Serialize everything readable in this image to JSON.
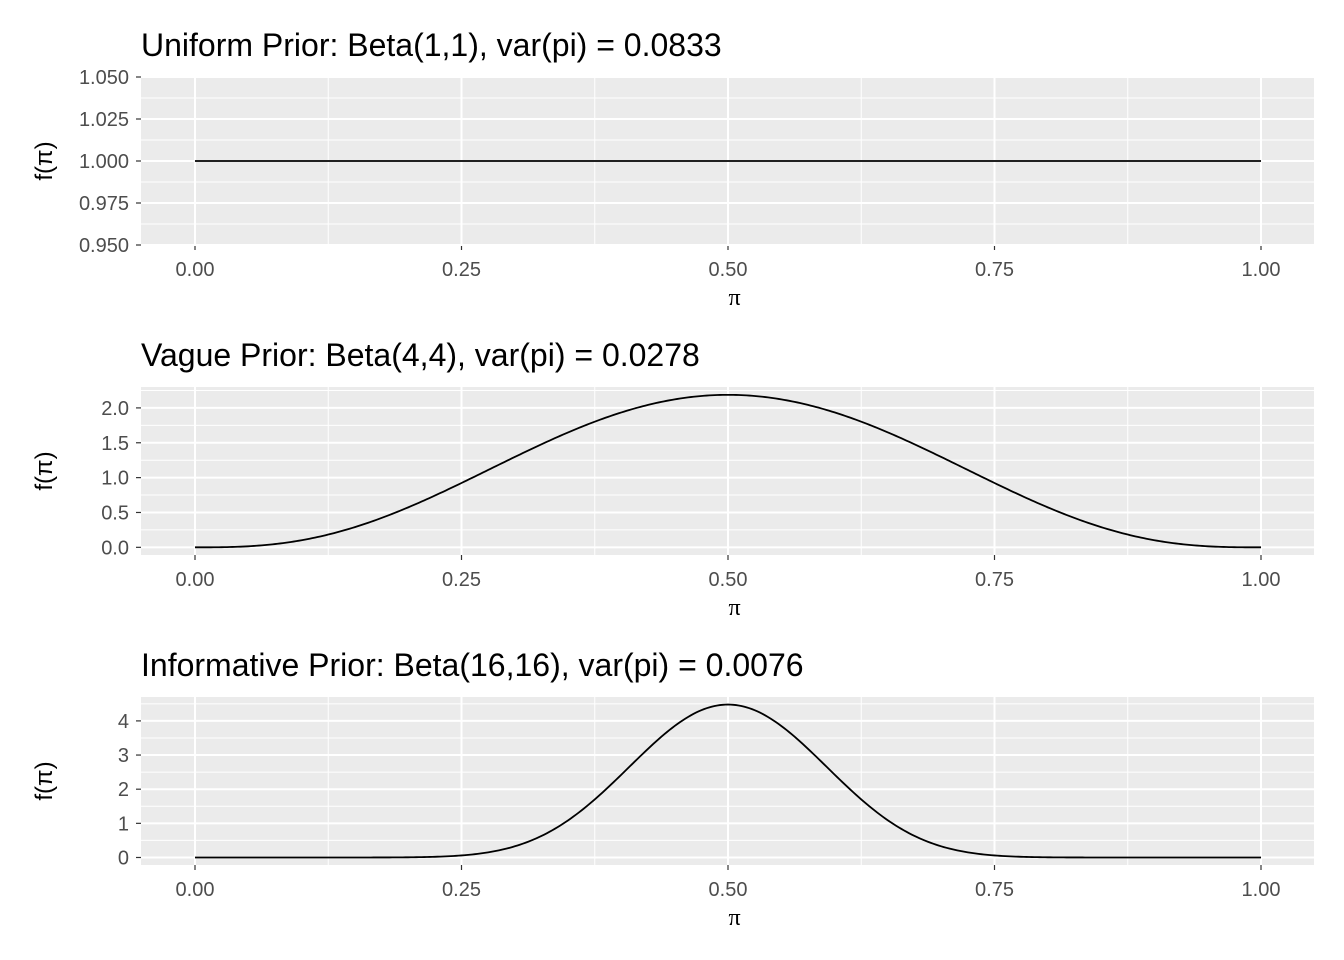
{
  "chart_data": [
    {
      "type": "line",
      "title": "Uniform Prior: Beta(1,1), var(pi) = 0.0833",
      "xlabel": "π",
      "ylabel": "f(π)",
      "alpha": 1,
      "beta": 1,
      "xlim": [
        0,
        1
      ],
      "ylim": [
        0.95,
        1.05
      ],
      "x_ticks": [
        "0.00",
        "0.25",
        "0.50",
        "0.75",
        "1.00"
      ],
      "x_tick_values": [
        0,
        0.25,
        0.5,
        0.75,
        1
      ],
      "y_ticks": [
        "0.950",
        "0.975",
        "1.000",
        "1.025",
        "1.050"
      ],
      "y_tick_values": [
        0.95,
        0.975,
        1.0,
        1.025,
        1.05
      ],
      "grid": true
    },
    {
      "type": "line",
      "title": "Vague Prior: Beta(4,4), var(pi) = 0.0278",
      "xlabel": "π",
      "ylabel": "f(π)",
      "alpha": 4,
      "beta": 4,
      "xlim": [
        0,
        1
      ],
      "ylim": [
        -0.11,
        2.3
      ],
      "x_ticks": [
        "0.00",
        "0.25",
        "0.50",
        "0.75",
        "1.00"
      ],
      "x_tick_values": [
        0,
        0.25,
        0.5,
        0.75,
        1
      ],
      "y_ticks": [
        "0.0",
        "0.5",
        "1.0",
        "1.5",
        "2.0"
      ],
      "y_tick_values": [
        0,
        0.5,
        1.0,
        1.5,
        2.0
      ],
      "grid": true
    },
    {
      "type": "line",
      "title": "Informative Prior: Beta(16,16), var(pi) = 0.0076",
      "xlabel": "π",
      "ylabel": "f(π)",
      "alpha": 16,
      "beta": 16,
      "xlim": [
        0,
        1
      ],
      "ylim": [
        -0.22,
        4.7
      ],
      "x_ticks": [
        "0.00",
        "0.25",
        "0.50",
        "0.75",
        "1.00"
      ],
      "x_tick_values": [
        0,
        0.25,
        0.5,
        0.75,
        1
      ],
      "y_ticks": [
        "0",
        "1",
        "2",
        "3",
        "4"
      ],
      "y_tick_values": [
        0,
        1,
        2,
        3,
        4
      ],
      "grid": true
    }
  ]
}
